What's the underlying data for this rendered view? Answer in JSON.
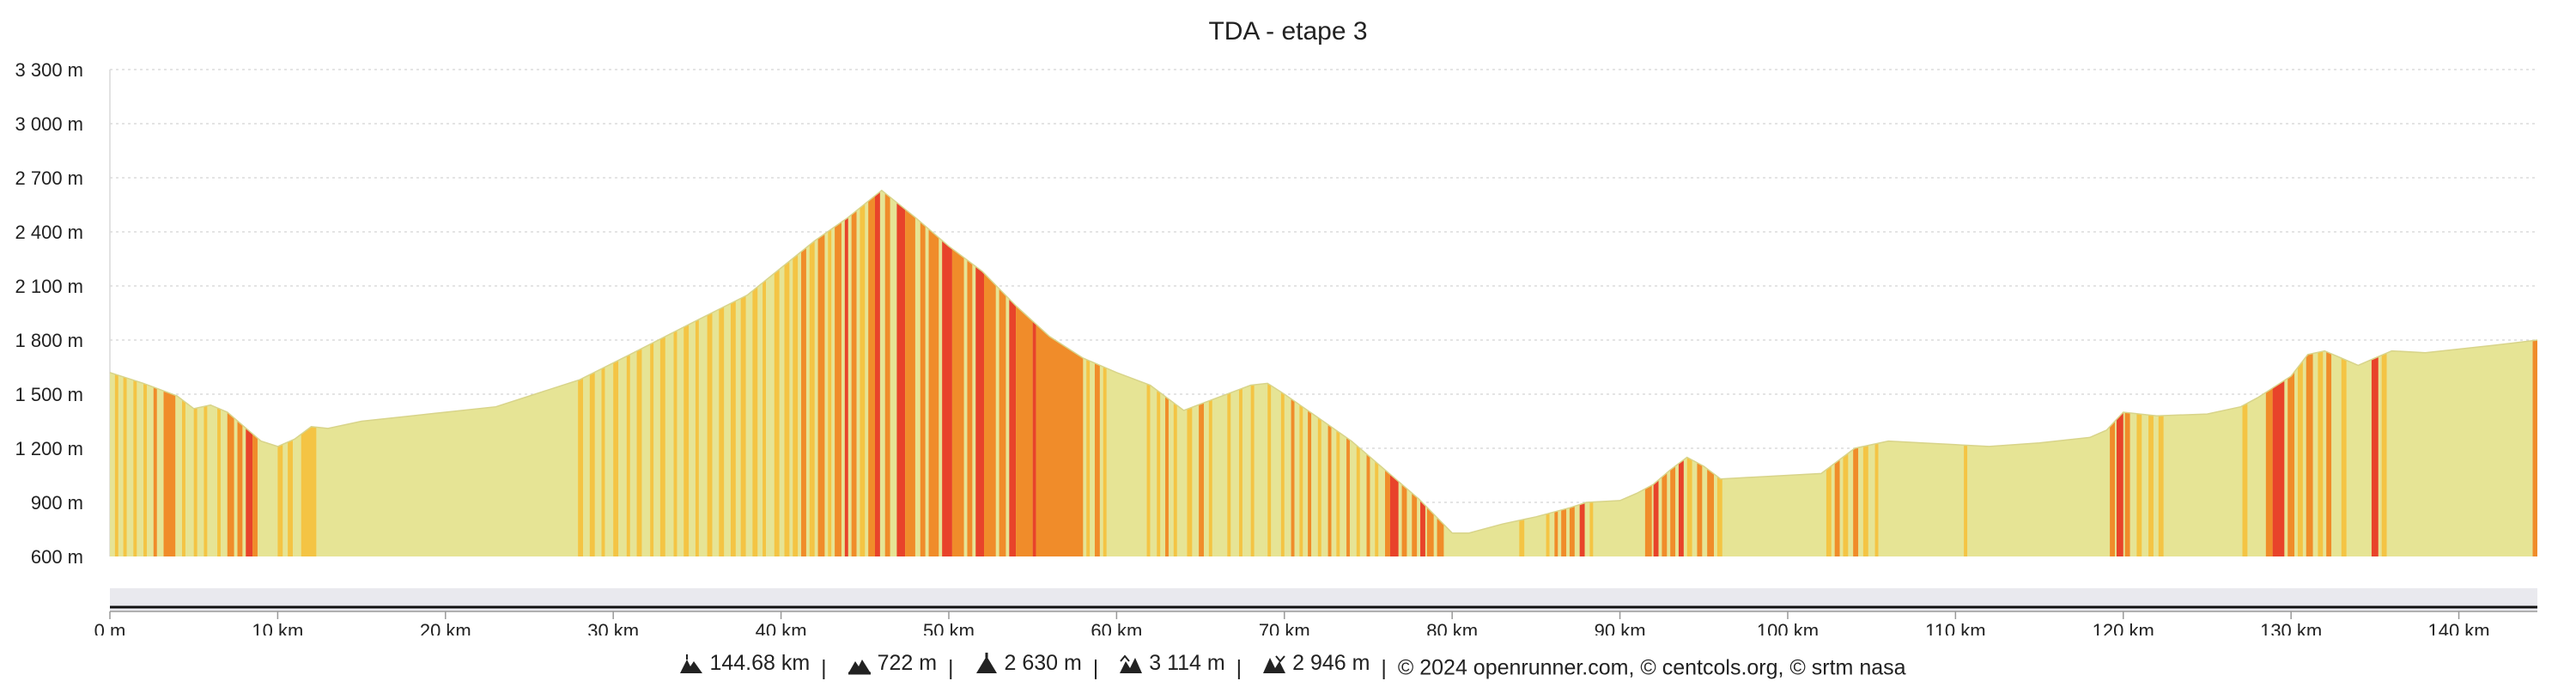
{
  "chart_data": {
    "type": "area",
    "title": "TDA - etape 3",
    "xlabel": "",
    "ylabel": "",
    "ylim": [
      600,
      3300
    ],
    "xlim": [
      0,
      144.68
    ],
    "y_ticks": [
      "600 m",
      "900 m",
      "1 200 m",
      "1 500 m",
      "1 800 m",
      "2 100 m",
      "2 400 m",
      "2 700 m",
      "3 000 m",
      "3 300 m"
    ],
    "y_tick_values": [
      600,
      900,
      1200,
      1500,
      1800,
      2100,
      2400,
      2700,
      3000,
      3300
    ],
    "x_ticks": [
      "0 m",
      "10 km",
      "20 km",
      "30 km",
      "40 km",
      "50 km",
      "60 km",
      "70 km",
      "80 km",
      "90 km",
      "100 km",
      "110 km",
      "120 km",
      "130 km",
      "140 km"
    ],
    "x_tick_values": [
      0,
      10,
      20,
      30,
      40,
      50,
      60,
      70,
      80,
      90,
      100,
      110,
      120,
      130,
      140
    ],
    "grid": true,
    "series": [
      {
        "x": [
          0,
          2,
          4,
          5,
          6,
          7,
          8,
          9,
          10,
          11,
          12,
          13,
          15,
          18,
          20,
          23,
          25,
          28,
          31,
          35,
          38,
          40,
          42,
          44,
          46,
          48,
          50,
          52,
          54,
          56,
          58,
          60,
          62,
          64,
          66,
          68,
          69,
          70,
          72,
          74,
          76,
          78,
          80,
          81,
          83,
          85,
          87,
          88,
          90,
          91,
          92,
          93,
          94,
          95,
          96,
          98,
          100,
          102,
          104,
          106,
          108,
          110,
          112,
          115,
          118,
          119,
          120,
          122,
          125,
          127,
          128,
          130,
          131,
          132,
          133,
          134,
          135,
          136,
          138,
          140,
          142,
          144.68
        ],
        "y": [
          1620,
          1560,
          1490,
          1420,
          1440,
          1400,
          1320,
          1240,
          1210,
          1250,
          1320,
          1310,
          1350,
          1380,
          1400,
          1430,
          1490,
          1580,
          1720,
          1910,
          2050,
          2200,
          2350,
          2480,
          2630,
          2480,
          2320,
          2180,
          1990,
          1820,
          1700,
          1620,
          1550,
          1410,
          1480,
          1550,
          1560,
          1500,
          1370,
          1240,
          1080,
          920,
          730,
          730,
          780,
          820,
          870,
          900,
          910,
          950,
          1000,
          1080,
          1150,
          1100,
          1030,
          1040,
          1050,
          1060,
          1200,
          1240,
          1230,
          1220,
          1210,
          1230,
          1260,
          1300,
          1400,
          1380,
          1390,
          1430,
          1480,
          1600,
          1720,
          1740,
          1700,
          1660,
          1700,
          1740,
          1730,
          1750,
          1770,
          1800
        ]
      }
    ],
    "slope_colors": {
      "flat": "#e6e495",
      "light": "#f4c444",
      "medium": "#f08c2a",
      "steep": "#e8432a"
    },
    "slope_bands": [
      [
        0.3,
        0.5,
        "light"
      ],
      [
        0.8,
        1.0,
        "light"
      ],
      [
        1.4,
        1.6,
        "light"
      ],
      [
        2.0,
        2.2,
        "light"
      ],
      [
        2.6,
        2.8,
        "medium"
      ],
      [
        3.2,
        3.9,
        "medium"
      ],
      [
        4.3,
        4.5,
        "light"
      ],
      [
        5.0,
        5.2,
        "light"
      ],
      [
        5.6,
        5.8,
        "light"
      ],
      [
        6.4,
        6.6,
        "light"
      ],
      [
        7.0,
        7.4,
        "medium"
      ],
      [
        7.6,
        7.9,
        "medium"
      ],
      [
        8.1,
        8.5,
        "steep"
      ],
      [
        8.5,
        8.8,
        "medium"
      ],
      [
        10.0,
        10.3,
        "light"
      ],
      [
        10.6,
        10.9,
        "light"
      ],
      [
        11.4,
        12.3,
        "light"
      ],
      [
        27.9,
        28.2,
        "light"
      ],
      [
        28.6,
        28.9,
        "light"
      ],
      [
        29.3,
        29.5,
        "light"
      ],
      [
        30.0,
        30.3,
        "light"
      ],
      [
        30.8,
        31.0,
        "light"
      ],
      [
        31.4,
        31.7,
        "light"
      ],
      [
        32.2,
        32.4,
        "light"
      ],
      [
        32.8,
        33.1,
        "light"
      ],
      [
        33.6,
        33.8,
        "light"
      ],
      [
        34.2,
        34.5,
        "light"
      ],
      [
        34.9,
        35.1,
        "light"
      ],
      [
        35.6,
        35.9,
        "light"
      ],
      [
        36.3,
        36.6,
        "light"
      ],
      [
        37.0,
        37.3,
        "light"
      ],
      [
        37.6,
        37.9,
        "light"
      ],
      [
        38.3,
        38.6,
        "light"
      ],
      [
        38.9,
        39.1,
        "light"
      ],
      [
        39.6,
        39.9,
        "light"
      ],
      [
        40.2,
        40.5,
        "light"
      ],
      [
        40.7,
        41.0,
        "light"
      ],
      [
        41.2,
        41.5,
        "medium"
      ],
      [
        41.7,
        42.0,
        "light"
      ],
      [
        42.2,
        42.6,
        "medium"
      ],
      [
        42.8,
        43.0,
        "light"
      ],
      [
        43.2,
        43.6,
        "medium"
      ],
      [
        43.8,
        44.0,
        "steep"
      ],
      [
        44.2,
        44.5,
        "medium"
      ],
      [
        44.7,
        45.0,
        "light"
      ],
      [
        45.2,
        45.6,
        "medium"
      ],
      [
        45.6,
        45.9,
        "steep"
      ],
      [
        46.2,
        46.5,
        "medium"
      ],
      [
        46.9,
        47.4,
        "steep"
      ],
      [
        47.4,
        48.0,
        "medium"
      ],
      [
        48.3,
        48.6,
        "medium"
      ],
      [
        48.8,
        49.4,
        "medium"
      ],
      [
        49.6,
        50.2,
        "steep"
      ],
      [
        50.2,
        50.9,
        "medium"
      ],
      [
        51.1,
        51.4,
        "medium"
      ],
      [
        51.6,
        52.1,
        "steep"
      ],
      [
        52.1,
        52.8,
        "medium"
      ],
      [
        53.0,
        53.4,
        "medium"
      ],
      [
        53.6,
        54.0,
        "steep"
      ],
      [
        54.0,
        55.0,
        "medium"
      ],
      [
        55.0,
        55.2,
        "steep"
      ],
      [
        55.2,
        58.0,
        "medium"
      ],
      [
        58.2,
        58.4,
        "light"
      ],
      [
        58.7,
        59.0,
        "medium"
      ],
      [
        59.2,
        59.4,
        "light"
      ],
      [
        61.8,
        62.0,
        "light"
      ],
      [
        62.4,
        62.6,
        "light"
      ],
      [
        62.9,
        63.1,
        "medium"
      ],
      [
        63.4,
        63.6,
        "light"
      ],
      [
        64.2,
        64.5,
        "light"
      ],
      [
        64.9,
        65.2,
        "medium"
      ],
      [
        65.5,
        65.7,
        "light"
      ],
      [
        66.6,
        66.8,
        "light"
      ],
      [
        67.3,
        67.5,
        "light"
      ],
      [
        68.0,
        68.2,
        "light"
      ],
      [
        69.0,
        69.2,
        "light"
      ],
      [
        69.8,
        70.0,
        "light"
      ],
      [
        70.4,
        70.6,
        "medium"
      ],
      [
        70.9,
        71.1,
        "light"
      ],
      [
        71.4,
        71.6,
        "medium"
      ],
      [
        72.0,
        72.2,
        "light"
      ],
      [
        72.6,
        72.8,
        "medium"
      ],
      [
        73.1,
        73.3,
        "light"
      ],
      [
        73.7,
        73.9,
        "medium"
      ],
      [
        74.3,
        74.5,
        "light"
      ],
      [
        74.9,
        75.1,
        "medium"
      ],
      [
        75.4,
        75.6,
        "light"
      ],
      [
        76.0,
        76.3,
        "medium"
      ],
      [
        76.3,
        76.8,
        "steep"
      ],
      [
        77.0,
        77.3,
        "medium"
      ],
      [
        77.6,
        77.9,
        "medium"
      ],
      [
        78.1,
        78.4,
        "steep"
      ],
      [
        78.5,
        78.9,
        "medium"
      ],
      [
        79.1,
        79.5,
        "medium"
      ],
      [
        84.0,
        84.3,
        "light"
      ],
      [
        85.6,
        85.8,
        "light"
      ],
      [
        86.1,
        86.3,
        "medium"
      ],
      [
        86.5,
        86.8,
        "medium"
      ],
      [
        87.0,
        87.3,
        "medium"
      ],
      [
        87.6,
        87.9,
        "steep"
      ],
      [
        88.2,
        88.4,
        "light"
      ],
      [
        91.5,
        91.9,
        "medium"
      ],
      [
        92.0,
        92.3,
        "steep"
      ],
      [
        92.5,
        92.8,
        "medium"
      ],
      [
        93.0,
        93.3,
        "medium"
      ],
      [
        93.5,
        93.8,
        "steep"
      ],
      [
        94.0,
        94.3,
        "light"
      ],
      [
        94.6,
        94.9,
        "medium"
      ],
      [
        95.2,
        95.6,
        "medium"
      ],
      [
        95.8,
        96.1,
        "light"
      ],
      [
        102.3,
        102.6,
        "light"
      ],
      [
        102.8,
        103.1,
        "medium"
      ],
      [
        103.3,
        103.6,
        "light"
      ],
      [
        103.9,
        104.2,
        "medium"
      ],
      [
        104.5,
        104.8,
        "light"
      ],
      [
        105.2,
        105.4,
        "light"
      ],
      [
        110.5,
        110.7,
        "light"
      ],
      [
        119.2,
        119.5,
        "medium"
      ],
      [
        119.6,
        120.0,
        "steep"
      ],
      [
        120.1,
        120.4,
        "medium"
      ],
      [
        120.8,
        121.1,
        "light"
      ],
      [
        121.5,
        121.8,
        "light"
      ],
      [
        122.1,
        122.4,
        "light"
      ],
      [
        127.1,
        127.4,
        "light"
      ],
      [
        128.5,
        128.9,
        "medium"
      ],
      [
        128.9,
        129.6,
        "steep"
      ],
      [
        129.8,
        130.2,
        "medium"
      ],
      [
        130.4,
        130.7,
        "light"
      ],
      [
        130.9,
        131.3,
        "medium"
      ],
      [
        131.6,
        131.9,
        "light"
      ],
      [
        132.1,
        132.4,
        "medium"
      ],
      [
        133.0,
        133.3,
        "light"
      ],
      [
        134.8,
        135.2,
        "steep"
      ],
      [
        135.4,
        135.7,
        "light"
      ],
      [
        144.4,
        144.68,
        "medium"
      ]
    ]
  },
  "footer": {
    "distance": "144.68 km",
    "min_altitude": "722 m",
    "max_altitude": "2 630 m",
    "elevation_gain": "3 114 m",
    "elevation_loss": "2 946 m",
    "credits": "© 2024 openrunner.com, © centcols.org, © srtm nasa",
    "separator": "|",
    "icons": [
      "distance-icon",
      "min-altitude-icon",
      "max-altitude-icon",
      "elevation-gain-icon",
      "elevation-loss-icon"
    ]
  }
}
